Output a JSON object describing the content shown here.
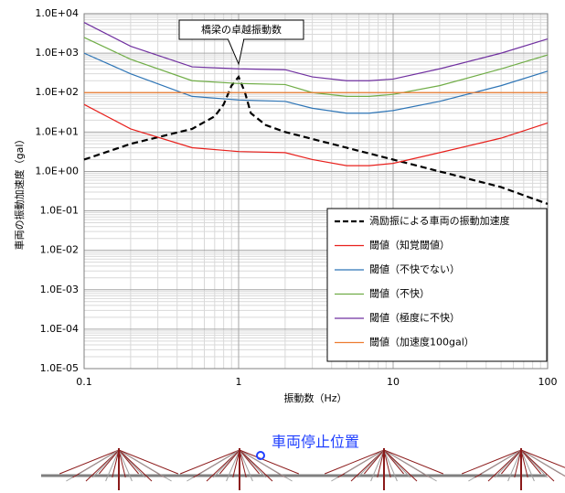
{
  "chart_data": {
    "type": "line",
    "xlabel": "振動数（Hz）",
    "ylabel": "車両の振動加速度（gal）",
    "annotation": "橋梁の卓越振動数",
    "log_x": true,
    "log_y": true,
    "grid": true,
    "legend": "lower right",
    "xlim": [
      0.1,
      100
    ],
    "xticks": [
      0.1,
      1,
      10,
      100
    ],
    "ylim": [
      1e-05,
      10000
    ],
    "yticks": [
      {
        "value": 1e-05,
        "label": "1.0E-05"
      },
      {
        "value": 0.0001,
        "label": "1.0E-04"
      },
      {
        "value": 0.001,
        "label": "1.0E-03"
      },
      {
        "value": 0.01,
        "label": "1.0E-02"
      },
      {
        "value": 0.1,
        "label": "1.0E-01"
      },
      {
        "value": 1,
        "label": "1.0E+00"
      },
      {
        "value": 10,
        "label": "1.0E+01"
      },
      {
        "value": 100,
        "label": "1.0E+02"
      },
      {
        "value": 1000,
        "label": "1.0E+03"
      },
      {
        "value": 10000,
        "label": "1.0E+04"
      }
    ],
    "series": [
      {
        "name": "渦励振による車両の振動加速度",
        "color": "#000000",
        "dashed": true,
        "x": [
          0.1,
          0.2,
          0.5,
          0.7,
          0.8,
          0.9,
          1.0,
          1.1,
          1.2,
          1.5,
          2,
          5,
          10,
          20,
          50,
          100
        ],
        "values": [
          2,
          5,
          12,
          25,
          50,
          150,
          250,
          100,
          30,
          15,
          10,
          4,
          2,
          1,
          0.4,
          0.15
        ]
      },
      {
        "name": "閾値（知覚閾値）",
        "color": "#e8201c",
        "dashed": false,
        "x": [
          0.1,
          0.2,
          0.5,
          1,
          2,
          3,
          5,
          7,
          10,
          20,
          50,
          100
        ],
        "values": [
          50,
          12,
          4,
          3.2,
          3,
          2,
          1.4,
          1.4,
          1.6,
          3,
          7,
          17
        ]
      },
      {
        "name": "閾値（不快でない）",
        "color": "#2e75b6",
        "dashed": false,
        "x": [
          0.1,
          0.2,
          0.5,
          1,
          2,
          3,
          5,
          7,
          10,
          20,
          50,
          100
        ],
        "values": [
          1000,
          300,
          80,
          65,
          60,
          40,
          30,
          30,
          35,
          60,
          150,
          350
        ]
      },
      {
        "name": "閾値（不快）",
        "color": "#70ad47",
        "dashed": false,
        "x": [
          0.1,
          0.2,
          0.5,
          1,
          2,
          3,
          5,
          7,
          10,
          20,
          50,
          100
        ],
        "values": [
          2500,
          700,
          200,
          170,
          160,
          100,
          80,
          80,
          90,
          150,
          400,
          900
        ]
      },
      {
        "name": "閾値（極度に不快）",
        "color": "#7030a0",
        "dashed": false,
        "x": [
          0.1,
          0.2,
          0.5,
          1,
          2,
          3,
          5,
          7,
          10,
          20,
          50,
          100
        ],
        "values": [
          6000,
          1500,
          450,
          400,
          380,
          250,
          200,
          200,
          220,
          400,
          1000,
          2300
        ]
      },
      {
        "name": "閾値（加速度100gal）",
        "color": "#ed7d31",
        "dashed": false,
        "x": [
          0.1,
          100
        ],
        "values": [
          100,
          100
        ]
      }
    ]
  },
  "diagram": {
    "label": "車両停止位置"
  }
}
